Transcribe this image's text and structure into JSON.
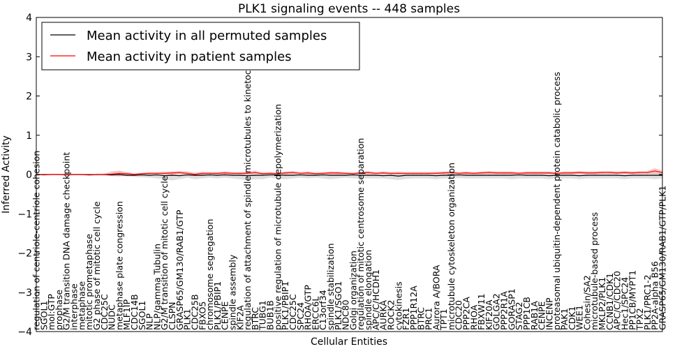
{
  "chart_data": {
    "type": "line",
    "title": "PLK1 signaling events -- 448 samples",
    "xlabel": "Cellular Entities",
    "ylabel": "Inferred Activity",
    "ylim": [
      -4,
      4
    ],
    "yticks": [
      -4,
      -3,
      -2,
      -1,
      0,
      1,
      2,
      3,
      4
    ],
    "legend_position": "top-left",
    "categories": [
      "regulation of centriole-centriole cohesion",
      "SGOL1",
      "mol:GTP",
      "prophase",
      "G2/M transition DNA damage checkpoint",
      "interphase",
      "metaphase",
      "mitotic prometaphase",
      "G2 phase of mitotic cell cycle",
      "CDC25C",
      "NUDC",
      "metaphase plate congression",
      "MLF1IP",
      "CDC14B",
      "SGOL1",
      "NLP",
      "NLP/gamma Tubulin",
      "G2/M transition of mitotic cell cycle",
      "CLSPN",
      "GRASP65/GM130/RAB1/GTP",
      "PLK1",
      "CDC25B",
      "FBXO5",
      "chromosome segregation",
      "PLK1/PBIP1",
      "CENPE",
      "spindle assembly",
      "KIF2A",
      "regulation of attachment of spindle microtubules to kinetochore",
      "BTRC",
      "TUBG1",
      "BUB1B",
      "positive regulation of microtubule depolymerization",
      "PLK1/PBIP1",
      "CDC25C",
      "SPC24",
      "RHOA/GTP",
      "ERCC6L",
      "C13orf34",
      "spindle stabilization",
      "PLK1/SGO1",
      "NDC80",
      "Golgi organization",
      "regulation of mitotic centrosome separation",
      "spindle elongation",
      "APC/C/HCDH1",
      "AURKA",
      "ROCK2",
      "cytokinesis",
      "FZR1",
      "PPP1R12A",
      "BTRC",
      "PRC1",
      "Aurora A/BORA",
      "TPT1",
      "microtubule cytoskeleton organization",
      "CDC20",
      "PPP2CA",
      "RHOA",
      "FBXW11",
      "KIF20A",
      "GOLGA2",
      "PPP2R1A",
      "GORASP1",
      "STAG2",
      "PPP1CB",
      "RAB1A",
      "CENPE",
      "INCENP",
      "proteasomal ubiquitin-dependent protein catabolic process",
      "PAK1",
      "CDK1",
      "WEE1",
      "Cohesin/SA2",
      "microtubule-based process",
      "MKLP2/PLK1",
      "CCNB1/CDK1",
      "APC/C/CDC20",
      "Hec1/SPC24",
      "PP1CB/MYPT1",
      "TPX2",
      "PLK1/PRC1-2",
      "PP2A-alpha B56",
      "GRASP65/GM130/RAB1/GTP/PLK1"
    ],
    "series": [
      {
        "name": "Mean activity in all permuted samples",
        "color": "#000000",
        "values": [
          0,
          -0.01,
          0,
          0,
          -0.01,
          0,
          0,
          -0.01,
          0,
          0,
          -0.01,
          0,
          -0.02,
          -0.02,
          -0.01,
          -0.02,
          -0.01,
          -0.03,
          -0.02,
          -0.03,
          -0.01,
          -0.02,
          -0.02,
          -0.01,
          -0.02,
          -0.01,
          -0.02,
          -0.02,
          -0.03,
          -0.02,
          -0.02,
          -0.01,
          -0.01,
          -0.02,
          -0.02,
          -0.01,
          -0.02,
          -0.02,
          -0.01,
          -0.02,
          -0.02,
          -0.02,
          -0.01,
          -0.02,
          -0.02,
          -0.02,
          -0.03,
          -0.02,
          -0.04,
          -0.02,
          -0.02,
          -0.02,
          -0.02,
          -0.03,
          -0.02,
          -0.02,
          -0.01,
          -0.02,
          -0.02,
          -0.02,
          -0.02,
          -0.02,
          -0.02,
          -0.02,
          -0.01,
          -0.02,
          -0.02,
          -0.02,
          -0.03,
          -0.02,
          -0.02,
          -0.02,
          -0.03,
          -0.02,
          -0.02,
          -0.02,
          -0.02,
          -0.02,
          -0.03,
          -0.02,
          -0.02,
          -0.02,
          -0.02,
          -0.02
        ]
      },
      {
        "name": "Mean activity in patient samples",
        "color": "#ff0000",
        "values": [
          0,
          0,
          0,
          0,
          0,
          0,
          0,
          0,
          0,
          0,
          0.01,
          0.03,
          0.02,
          0,
          0.02,
          0.03,
          0.03,
          0.03,
          0.04,
          0.05,
          0.03,
          0,
          0.03,
          0.03,
          0.03,
          0.04,
          0.03,
          0.03,
          0.03,
          0.05,
          0.02,
          0.03,
          0.02,
          0.04,
          0.05,
          0.03,
          0.04,
          0.02,
          0.03,
          0.04,
          0.04,
          0.03,
          0.02,
          0.04,
          0.05,
          0.03,
          0.04,
          0.03,
          0.03,
          0.03,
          0.03,
          0.03,
          0.03,
          0.03,
          0.04,
          0.05,
          0.03,
          0.04,
          0.03,
          0.04,
          0.05,
          0.04,
          0.04,
          0.04,
          0.03,
          0.04,
          0.04,
          0.04,
          0.04,
          0.03,
          0.04,
          0.04,
          0.05,
          0.04,
          0.04,
          0.05,
          0.05,
          0.04,
          0.05,
          0.04,
          0.05,
          0.05,
          0.09,
          0.05
        ]
      }
    ],
    "bands": [
      {
        "name": "permuted spread",
        "color": "#d3d3d3",
        "lower": [
          0,
          -0.01,
          -0.01,
          -0.01,
          -0.02,
          -0.02,
          -0.02,
          -0.03,
          -0.03,
          -0.03,
          -0.04,
          -0.04,
          -0.05,
          -0.06,
          -0.07,
          -0.08,
          -0.1,
          -0.12,
          -0.15,
          -0.12,
          -0.08,
          -0.12,
          -0.1,
          -0.08,
          -0.1,
          -0.08,
          -0.1,
          -0.12,
          -0.15,
          -0.12,
          -0.12,
          -0.08,
          -0.1,
          -0.12,
          -0.1,
          -0.08,
          -0.1,
          -0.08,
          -0.1,
          -0.12,
          -0.1,
          -0.08,
          -0.1,
          -0.1,
          -0.1,
          -0.1,
          -0.1,
          -0.12,
          -0.14,
          -0.11,
          -0.1,
          -0.1,
          -0.1,
          -0.12,
          -0.1,
          -0.1,
          -0.09,
          -0.1,
          -0.1,
          -0.1,
          -0.1,
          -0.1,
          -0.1,
          -0.12,
          -0.1,
          -0.1,
          -0.1,
          -0.1,
          -0.12,
          -0.1,
          -0.1,
          -0.1,
          -0.12,
          -0.1,
          -0.1,
          -0.1,
          -0.1,
          -0.1,
          -0.12,
          -0.1,
          -0.1,
          -0.1,
          -0.12,
          -0.1
        ],
        "upper": [
          0,
          0.01,
          0.01,
          0.01,
          0.01,
          0.01,
          0.01,
          0.01,
          0.01,
          0.01,
          0.02,
          0.02,
          0.02,
          0.02,
          0.02,
          0.03,
          0.03,
          0.04,
          0.05,
          0.04,
          0.04,
          0.05,
          0.04,
          0.04,
          0.04,
          0.04,
          0.05,
          0.05,
          0.06,
          0.05,
          0.05,
          0.04,
          0.04,
          0.05,
          0.04,
          0.04,
          0.04,
          0.04,
          0.04,
          0.05,
          0.04,
          0.04,
          0.04,
          0.04,
          0.04,
          0.04,
          0.04,
          0.05,
          0.05,
          0.04,
          0.04,
          0.04,
          0.04,
          0.05,
          0.04,
          0.04,
          0.04,
          0.04,
          0.04,
          0.04,
          0.04,
          0.04,
          0.04,
          0.05,
          0.04,
          0.04,
          0.04,
          0.04,
          0.05,
          0.04,
          0.04,
          0.04,
          0.05,
          0.04,
          0.04,
          0.04,
          0.04,
          0.04,
          0.05,
          0.04,
          0.04,
          0.04,
          0.05,
          0.04
        ]
      },
      {
        "name": "patient spread",
        "color": "#f4a0a0",
        "lower": [
          0,
          0,
          0,
          0,
          0,
          0,
          0,
          0,
          0,
          -0.01,
          -0.04,
          -0.05,
          -0.02,
          -0.02,
          -0.01,
          0,
          0,
          0,
          -0.02,
          0.02,
          -0.02,
          -0.04,
          -0.01,
          0,
          0,
          0,
          0,
          -0.01,
          -0.01,
          0.02,
          0,
          -0.01,
          0,
          0,
          0.02,
          0,
          0.01,
          0,
          0,
          0.01,
          0,
          0,
          0,
          0.01,
          0.01,
          0,
          0.01,
          0,
          0,
          0,
          0,
          0,
          0,
          0,
          0.01,
          0.02,
          0,
          0.01,
          0,
          0.01,
          0.01,
          0.01,
          0.01,
          0.01,
          0,
          0.01,
          0.01,
          0.01,
          0.01,
          0,
          0.01,
          0.01,
          0.02,
          0.01,
          0.01,
          0.02,
          0.02,
          0.01,
          0.02,
          0.01,
          0.02,
          0.02,
          0.02,
          0.02
        ],
        "upper": [
          0,
          0,
          0,
          0,
          0,
          0,
          0,
          0,
          0,
          0.02,
          0.08,
          0.1,
          0.06,
          0.03,
          0.05,
          0.06,
          0.06,
          0.07,
          0.08,
          0.09,
          0.08,
          0.04,
          0.07,
          0.06,
          0.06,
          0.08,
          0.06,
          0.06,
          0.07,
          0.1,
          0.05,
          0.06,
          0.05,
          0.08,
          0.09,
          0.06,
          0.08,
          0.05,
          0.06,
          0.08,
          0.07,
          0.06,
          0.05,
          0.08,
          0.09,
          0.06,
          0.08,
          0.06,
          0.07,
          0.06,
          0.06,
          0.06,
          0.06,
          0.07,
          0.08,
          0.09,
          0.06,
          0.08,
          0.06,
          0.08,
          0.09,
          0.08,
          0.08,
          0.08,
          0.06,
          0.08,
          0.08,
          0.08,
          0.08,
          0.06,
          0.08,
          0.08,
          0.09,
          0.08,
          0.08,
          0.09,
          0.09,
          0.08,
          0.09,
          0.08,
          0.09,
          0.09,
          0.16,
          0.09
        ]
      }
    ]
  }
}
